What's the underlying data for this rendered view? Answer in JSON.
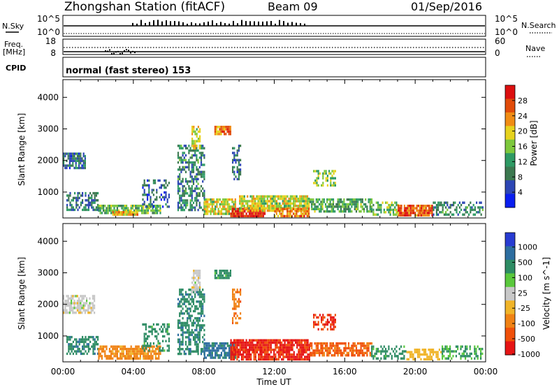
{
  "header": {
    "station": "Zhongshan Station (fitACF)",
    "beam": "Beam 09",
    "date": "01/Sep/2016"
  },
  "summary_panels": {
    "nsky_label": "N.Sky",
    "nsky_ticks": [
      "10^5",
      "10^0"
    ],
    "nsearch_label": "N.Search",
    "nsearch_ticks": [
      "10^5",
      "10^0"
    ],
    "freq_label": "Freq.",
    "freq_unit": "[MHz]",
    "freq_ticks": [
      "18",
      "8"
    ],
    "nave_label": "Nave",
    "nave_ticks": [
      "60",
      "0"
    ],
    "cpid_label": "CPID",
    "cpid_text": "normal (fast stereo) 153"
  },
  "x_axis": {
    "label": "Time UT",
    "ticks": [
      "00:00",
      "04:00",
      "08:00",
      "12:00",
      "16:00",
      "20:00",
      "00:00"
    ]
  },
  "colors": {
    "power": [
      "#0a1ef0",
      "#2d46b4",
      "#3c7850",
      "#2e9a64",
      "#7dc83c",
      "#e6d21e",
      "#f08c14",
      "#e14b0a",
      "#dc0f0f"
    ],
    "velocity": [
      "#283cd2",
      "#2d6ea0",
      "#2e8c64",
      "#5ac83c",
      "#c8c8c8",
      "#f0b428",
      "#f08214",
      "#f0500a",
      "#e61414"
    ]
  },
  "chart_data": [
    {
      "type": "heatmap",
      "title": "Power",
      "xlabel": "Time UT",
      "ylabel": "Slant Range [km]",
      "xlim": [
        0,
        24
      ],
      "ylim": [
        180,
        4560
      ],
      "y_ticks": [
        "1000",
        "2000",
        "3000",
        "4000"
      ],
      "colorbar_label": "Power [dB]",
      "colorbar_ticks": [
        "4",
        "8",
        "12",
        "16",
        "20",
        "24",
        "28"
      ],
      "colorbar_range": [
        0,
        32
      ],
      "regions": [
        {
          "t0": 0.0,
          "t1": 1.3,
          "r0": 1750,
          "r1": 2250,
          "value": 8,
          "density": 0.75
        },
        {
          "t0": 0.2,
          "t1": 2.0,
          "r0": 400,
          "r1": 1000,
          "value": 9,
          "density": 0.6
        },
        {
          "t0": 2.0,
          "t1": 5.5,
          "r0": 300,
          "r1": 600,
          "value": 14,
          "density": 0.8
        },
        {
          "t0": 2.8,
          "t1": 4.2,
          "r0": 250,
          "r1": 400,
          "value": 22,
          "density": 0.9
        },
        {
          "t0": 4.5,
          "t1": 6.0,
          "r0": 500,
          "r1": 1400,
          "value": 7,
          "density": 0.4
        },
        {
          "t0": 6.5,
          "t1": 8.0,
          "r0": 400,
          "r1": 2500,
          "value": 10,
          "density": 0.55
        },
        {
          "t0": 7.3,
          "t1": 7.8,
          "r0": 2400,
          "r1": 3100,
          "value": 18,
          "density": 0.6
        },
        {
          "t0": 8.6,
          "t1": 9.5,
          "r0": 2800,
          "r1": 3100,
          "value": 24,
          "density": 0.8
        },
        {
          "t0": 8.0,
          "t1": 9.8,
          "r0": 300,
          "r1": 800,
          "value": 18,
          "density": 0.8
        },
        {
          "t0": 9.5,
          "t1": 11.5,
          "r0": 250,
          "r1": 500,
          "value": 29,
          "density": 0.9
        },
        {
          "t0": 9.6,
          "t1": 10.1,
          "r0": 1400,
          "r1": 2500,
          "value": 7,
          "density": 0.5
        },
        {
          "t0": 10.0,
          "t1": 14.0,
          "r0": 400,
          "r1": 900,
          "value": 18,
          "density": 0.85
        },
        {
          "t0": 12.0,
          "t1": 14.0,
          "r0": 250,
          "r1": 500,
          "value": 24,
          "density": 0.75
        },
        {
          "t0": 14.2,
          "t1": 15.5,
          "r0": 1200,
          "r1": 1700,
          "value": 16,
          "density": 0.5
        },
        {
          "t0": 14.0,
          "t1": 17.5,
          "r0": 400,
          "r1": 800,
          "value": 13,
          "density": 0.7
        },
        {
          "t0": 17.5,
          "t1": 19.0,
          "r0": 300,
          "r1": 700,
          "value": 15,
          "density": 0.5
        },
        {
          "t0": 19.0,
          "t1": 21.0,
          "r0": 250,
          "r1": 600,
          "value": 26,
          "density": 0.85
        },
        {
          "t0": 21.0,
          "t1": 23.8,
          "r0": 300,
          "r1": 700,
          "value": 10,
          "density": 0.5
        }
      ]
    },
    {
      "type": "heatmap",
      "title": "Velocity",
      "xlabel": "Time UT",
      "ylabel": "Slant Range [km]",
      "xlim": [
        0,
        24
      ],
      "ylim": [
        180,
        4560
      ],
      "y_ticks": [
        "1000",
        "2000",
        "3000",
        "4000"
      ],
      "colorbar_label": "Velocity [m s^-1]",
      "colorbar_ticks": [
        "1000",
        "500",
        "100",
        "25",
        "-25",
        "-100",
        "-500",
        "-1000"
      ],
      "colorbar_range": [
        -1000,
        1000
      ],
      "regions": [
        {
          "t0": 0.0,
          "t1": 1.8,
          "r0": 1700,
          "r1": 2300,
          "value": 0,
          "density": 0.75
        },
        {
          "t0": 0.2,
          "t1": 2.0,
          "r0": 400,
          "r1": 1000,
          "value": 200,
          "density": 0.6
        },
        {
          "t0": 2.0,
          "t1": 5.5,
          "r0": 250,
          "r1": 700,
          "value": -150,
          "density": 0.75
        },
        {
          "t0": 4.5,
          "t1": 6.0,
          "r0": 500,
          "r1": 1400,
          "value": 150,
          "density": 0.4
        },
        {
          "t0": 6.5,
          "t1": 8.0,
          "r0": 400,
          "r1": 2500,
          "value": 200,
          "density": 0.55
        },
        {
          "t0": 7.3,
          "t1": 7.8,
          "r0": 2400,
          "r1": 3100,
          "value": 0,
          "density": 0.6
        },
        {
          "t0": 8.6,
          "t1": 9.5,
          "r0": 2800,
          "r1": 3100,
          "value": 150,
          "density": 0.8
        },
        {
          "t0": 8.0,
          "t1": 9.8,
          "r0": 300,
          "r1": 800,
          "value": 300,
          "density": 0.8
        },
        {
          "t0": 9.5,
          "t1": 14.0,
          "r0": 250,
          "r1": 900,
          "value": -600,
          "density": 0.85
        },
        {
          "t0": 9.6,
          "t1": 10.1,
          "r0": 1400,
          "r1": 2500,
          "value": -200,
          "density": 0.5
        },
        {
          "t0": 14.2,
          "t1": 15.5,
          "r0": 1200,
          "r1": 1700,
          "value": -500,
          "density": 0.5
        },
        {
          "t0": 14.0,
          "t1": 17.5,
          "r0": 400,
          "r1": 800,
          "value": -300,
          "density": 0.7
        },
        {
          "t0": 17.5,
          "t1": 19.5,
          "r0": 300,
          "r1": 700,
          "value": 150,
          "density": 0.5
        },
        {
          "t0": 19.5,
          "t1": 21.5,
          "r0": 250,
          "r1": 600,
          "value": -60,
          "density": 0.6
        },
        {
          "t0": 21.5,
          "t1": 23.8,
          "r0": 300,
          "r1": 700,
          "value": 100,
          "density": 0.5
        }
      ]
    }
  ]
}
